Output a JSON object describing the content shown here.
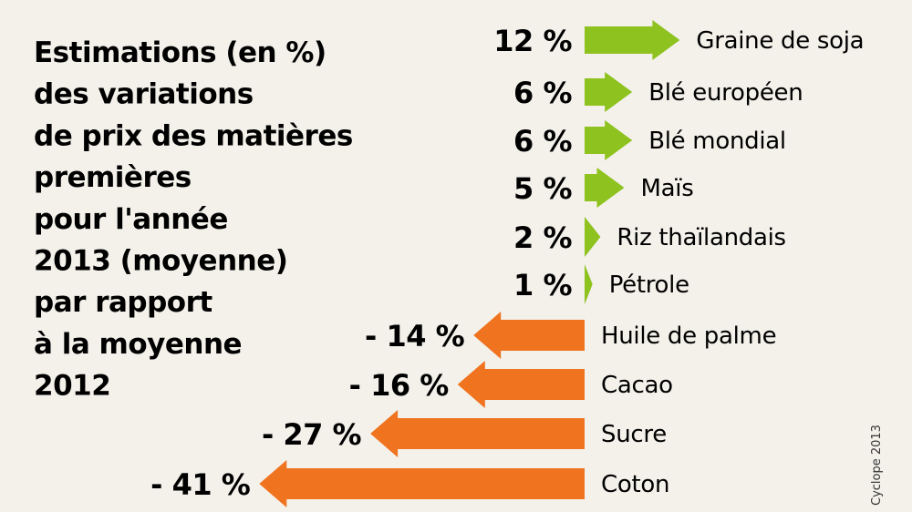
{
  "chart_data": {
    "type": "bar",
    "orientation": "horizontal",
    "title_lines": [
      "Estimations (en %)",
      "des variations",
      "de prix des matières",
      "premières",
      "pour l'année",
      "2013 (moyenne)",
      "par rapport",
      "à la moyenne",
      "2012"
    ],
    "categories": [
      "Graine de soja",
      "Blé européen",
      "Blé mondial",
      "Maïs",
      "Riz thaïlandais",
      "Pétrole",
      "Huile de palme",
      "Cacao",
      "Sucre",
      "Coton"
    ],
    "values": [
      12,
      6,
      6,
      5,
      2,
      1,
      -14,
      -16,
      -27,
      -41
    ],
    "value_labels": [
      "12 %",
      "6 %",
      "6 %",
      "5 %",
      "2 %",
      "1 %",
      "- 14 %",
      "- 16 %",
      "- 27 %",
      "- 41 %"
    ],
    "unit": "%",
    "colors": {
      "positive": "#8dc21f",
      "negative": "#f0731f",
      "background": "#f3f1ea"
    },
    "legend": "none",
    "grid": false
  },
  "credit": "Cyclope 2013"
}
